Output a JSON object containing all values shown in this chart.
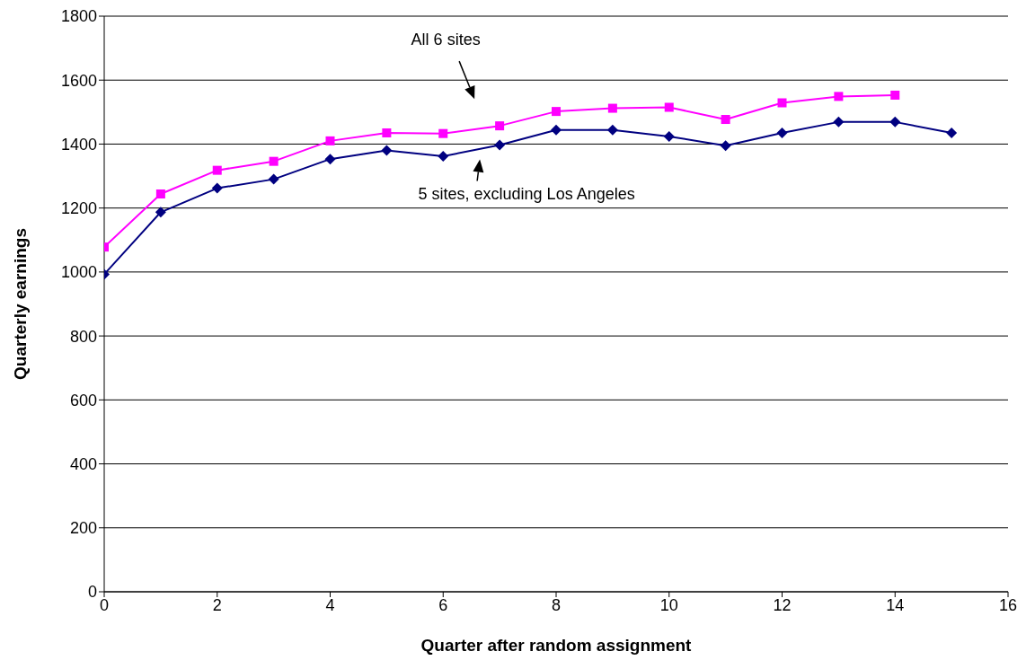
{
  "chart_data": {
    "type": "line",
    "xlabel": "Quarter after random assignment",
    "ylabel": "Quarterly earnings",
    "x": [
      0,
      1,
      2,
      3,
      4,
      5,
      6,
      7,
      8,
      9,
      10,
      11,
      12,
      13,
      14,
      15
    ],
    "series": [
      {
        "name": "All 6 sites",
        "color": "#ff00ff",
        "marker": "square",
        "values": [
          1078,
          1244,
          1318,
          1346,
          1410,
          1435,
          1433,
          1457,
          1502,
          1512,
          1515,
          1477,
          1529,
          1549,
          1553,
          null
        ]
      },
      {
        "name": "5 sites, excluding Los Angeles",
        "color": "#000080",
        "marker": "diamond",
        "values": [
          993,
          1187,
          1262,
          1290,
          1353,
          1380,
          1362,
          1397,
          1444,
          1444,
          1424,
          1395,
          1435,
          1469,
          1469,
          1435
        ]
      }
    ],
    "xlim": [
      0,
      16
    ],
    "xticks": [
      0,
      2,
      4,
      6,
      8,
      10,
      12,
      14,
      16
    ],
    "ylim": [
      0,
      1800
    ],
    "yticks": [
      0,
      200,
      400,
      600,
      800,
      1000,
      1200,
      1400,
      1600,
      1800
    ],
    "grid": "y",
    "legend": false,
    "line_style": "solid"
  }
}
